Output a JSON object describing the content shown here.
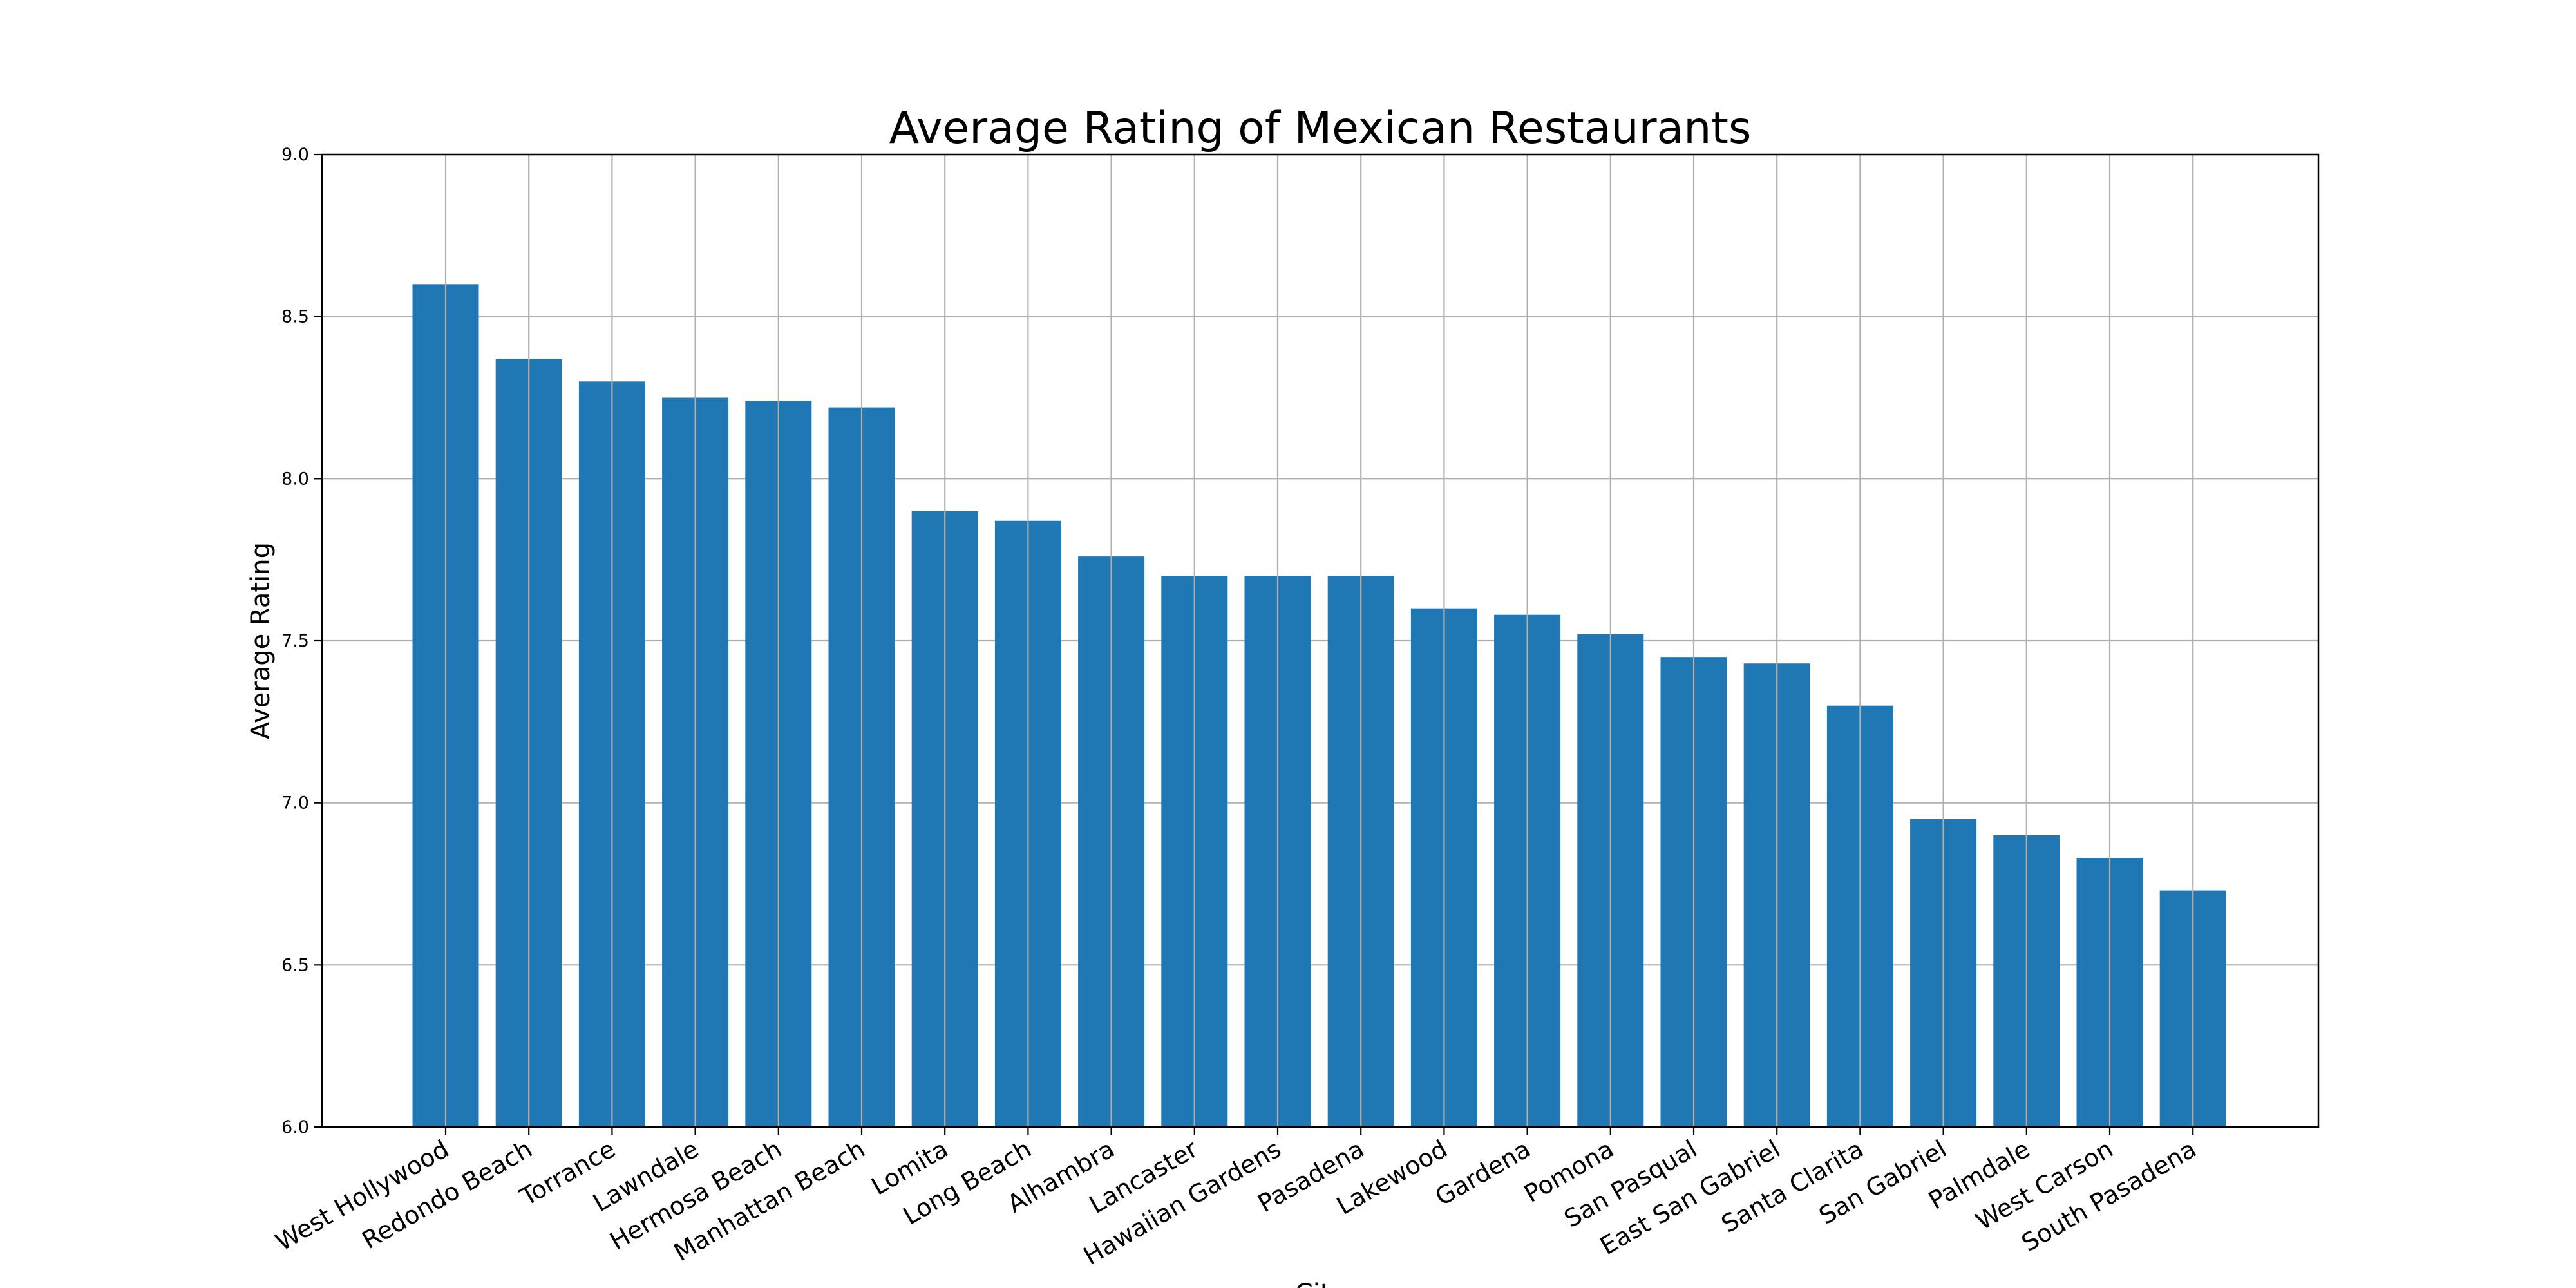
{
  "chart_data": {
    "type": "bar",
    "title": "Average Rating of Mexican Restaurants",
    "xlabel": "City",
    "ylabel": "Average Rating",
    "categories": [
      "West Hollywood",
      "Redondo Beach",
      "Torrance",
      "Lawndale",
      "Hermosa Beach",
      "Manhattan Beach",
      "Lomita",
      "Long Beach",
      "Alhambra",
      "Lancaster",
      "Hawaiian Gardens",
      "Pasadena",
      "Lakewood",
      "Gardena",
      "Pomona",
      "San Pasqual",
      "East San Gabriel",
      "Santa Clarita",
      "San Gabriel",
      "Palmdale",
      "West Carson",
      "South Pasadena"
    ],
    "values": [
      8.6,
      8.37,
      8.3,
      8.25,
      8.24,
      8.22,
      7.9,
      7.87,
      7.76,
      7.7,
      7.7,
      7.7,
      7.6,
      7.58,
      7.52,
      7.45,
      7.43,
      7.3,
      6.95,
      6.9,
      6.83,
      6.73
    ],
    "ylim": [
      6.0,
      9.0
    ],
    "yticks": [
      "6.0",
      "6.5",
      "7.0",
      "7.5",
      "8.0",
      "8.5",
      "9.0"
    ],
    "grid": true,
    "bar_color": "#1f77b4",
    "grid_color": "#b0b0b0"
  }
}
